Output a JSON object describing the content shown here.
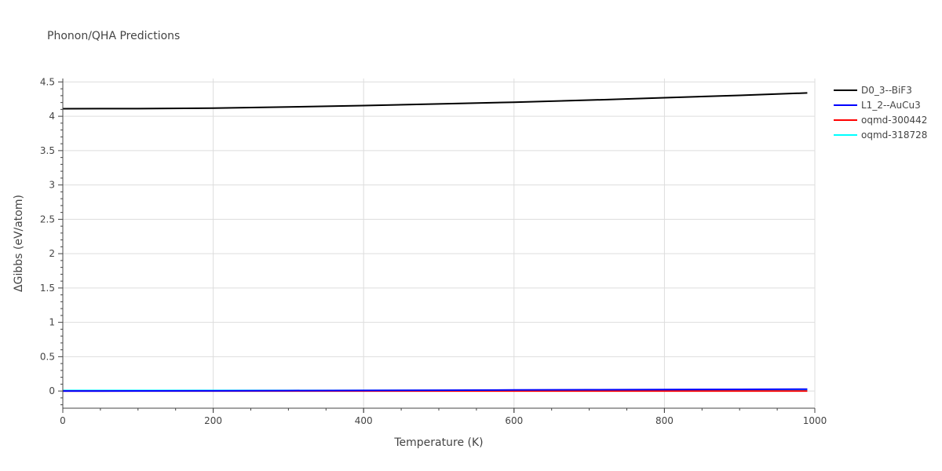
{
  "chart_data": {
    "type": "line",
    "title": "Phonon/QHA Predictions",
    "xlabel": "Temperature (K)",
    "ylabel": "ΔGibbs (eV/atom)",
    "xlim": [
      0,
      1000
    ],
    "ylim": [
      -0.25,
      4.55
    ],
    "xticks": [
      0,
      200,
      400,
      600,
      800,
      1000
    ],
    "xtick_labels": [
      "0",
      "200",
      "400",
      "600",
      "800",
      "1000"
    ],
    "yticks": [
      0,
      0.5,
      1,
      1.5,
      2,
      2.5,
      3,
      3.5,
      4,
      4.5
    ],
    "ytick_labels": [
      "0",
      "0.5",
      "1",
      "1.5",
      "2",
      "2.5",
      "3",
      "3.5",
      "4",
      "4.5"
    ],
    "grid": true,
    "legend_position": "top-right",
    "series": [
      {
        "name": "D0_3--BiF3",
        "color": "#000000",
        "x": [
          0,
          100,
          200,
          300,
          400,
          500,
          600,
          700,
          800,
          900,
          990
        ],
        "y": [
          4.11,
          4.112,
          4.118,
          4.135,
          4.155,
          4.18,
          4.205,
          4.235,
          4.27,
          4.305,
          4.34
        ]
      },
      {
        "name": "L1_2--AuCu3",
        "color": "#0000ff",
        "x": [
          0,
          100,
          200,
          300,
          400,
          500,
          600,
          700,
          800,
          900,
          990
        ],
        "y": [
          0.0,
          0.001,
          0.003,
          0.006,
          0.009,
          0.012,
          0.015,
          0.018,
          0.021,
          0.024,
          0.027
        ]
      },
      {
        "name": "oqmd-300442",
        "color": "#ff0000",
        "x": [
          0,
          100,
          200,
          300,
          400,
          500,
          600,
          700,
          800,
          900,
          990
        ],
        "y": [
          0.0,
          0.0,
          0.0,
          0.0,
          0.0,
          0.0,
          0.0,
          0.0,
          0.0,
          0.0,
          0.0
        ]
      },
      {
        "name": "oqmd-318728",
        "color": "#00ffff",
        "x": [
          0,
          100,
          200,
          300,
          400,
          500,
          600,
          700,
          800,
          900,
          990
        ],
        "y": [
          0.008,
          0.008,
          0.008,
          0.008,
          0.008,
          0.008,
          0.008,
          0.008,
          0.008,
          0.008,
          0.008
        ]
      }
    ]
  }
}
